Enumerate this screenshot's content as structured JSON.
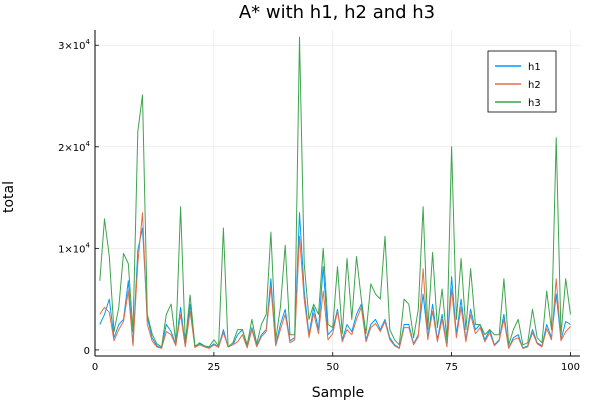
{
  "chart_data": {
    "type": "line",
    "title": "A* with h1, h2 and h3",
    "xlabel": "Sample",
    "ylabel": "total",
    "xlim": [
      0,
      102
    ],
    "ylim": [
      -600,
      31500
    ],
    "xticks": [
      "0",
      "25",
      "50",
      "75",
      "100"
    ],
    "xtick_values": [
      0,
      25,
      50,
      75,
      100
    ],
    "ytick_values": [
      0,
      10000,
      20000,
      30000
    ],
    "ytick_labels": [
      {
        "base": "0",
        "exp": ""
      },
      {
        "base": "1×10",
        "exp": "4"
      },
      {
        "base": "2×10",
        "exp": "4"
      },
      {
        "base": "3×10",
        "exp": "4"
      }
    ],
    "grid": true,
    "legend": "top-right",
    "colors": {
      "h1": "#009AFA",
      "h2": "#E36F47",
      "h3": "#3EA44E"
    },
    "x": [
      1,
      2,
      3,
      4,
      5,
      6,
      7,
      8,
      9,
      10,
      11,
      12,
      13,
      14,
      15,
      16,
      17,
      18,
      19,
      20,
      21,
      22,
      23,
      24,
      25,
      26,
      27,
      28,
      29,
      30,
      31,
      32,
      33,
      34,
      35,
      36,
      37,
      38,
      39,
      40,
      41,
      42,
      43,
      44,
      45,
      46,
      47,
      48,
      49,
      50,
      51,
      52,
      53,
      54,
      55,
      56,
      57,
      58,
      59,
      60,
      61,
      62,
      63,
      64,
      65,
      66,
      67,
      68,
      69,
      70,
      71,
      72,
      73,
      74,
      75,
      76,
      77,
      78,
      79,
      80,
      81,
      82,
      83,
      84,
      85,
      86,
      87,
      88,
      89,
      90,
      91,
      92,
      93,
      94,
      95,
      96,
      97,
      98,
      99,
      100
    ],
    "series": [
      {
        "name": "h1",
        "values": [
          2500,
          3500,
          5000,
          1200,
          2500,
          3000,
          6800,
          500,
          9800,
          12000,
          3200,
          1200,
          400,
          200,
          2500,
          1800,
          500,
          4200,
          400,
          4500,
          300,
          700,
          400,
          200,
          600,
          300,
          2000,
          300,
          500,
          1500,
          2000,
          300,
          2200,
          400,
          1500,
          2000,
          7000,
          500,
          2500,
          4000,
          900,
          1200,
          13500,
          5800,
          1500,
          4200,
          2000,
          8200,
          1500,
          2000,
          4000,
          1000,
          2500,
          1800,
          3500,
          4500,
          1000,
          2500,
          3000,
          2000,
          3000,
          1200,
          500,
          200,
          2500,
          2500,
          600,
          1500,
          5500,
          1200,
          4500,
          1000,
          3500,
          400,
          7200,
          1500,
          5000,
          1000,
          4000,
          2000,
          2500,
          1000,
          2000,
          500,
          1000,
          3500,
          200,
          1200,
          1500,
          200,
          400,
          2000,
          700,
          400,
          2500,
          1200,
          5500,
          1000,
          2800,
          2500
        ]
      },
      {
        "name": "h2",
        "values": [
          3500,
          4200,
          3700,
          900,
          2000,
          2800,
          5800,
          400,
          8500,
          13500,
          2500,
          900,
          300,
          150,
          1800,
          1500,
          400,
          3500,
          300,
          3800,
          250,
          500,
          300,
          150,
          500,
          250,
          1700,
          300,
          500,
          800,
          1500,
          200,
          2000,
          300,
          1300,
          1800,
          6200,
          400,
          2000,
          3500,
          700,
          1000,
          11200,
          5000,
          1200,
          3600,
          1600,
          5800,
          1000,
          1600,
          3800,
          800,
          2000,
          1500,
          3000,
          4200,
          800,
          2200,
          2600,
          1800,
          2800,
          1000,
          400,
          150,
          2200,
          2200,
          500,
          1300,
          8000,
          1000,
          3800,
          800,
          3000,
          300,
          6000,
          1200,
          4200,
          800,
          3500,
          1600,
          2200,
          800,
          1700,
          400,
          900,
          3000,
          150,
          1000,
          1200,
          150,
          300,
          1700,
          600,
          300,
          2100,
          1000,
          7000,
          900,
          1800,
          2300
        ]
      },
      {
        "name": "h3",
        "values": [
          6800,
          12900,
          9200,
          1800,
          4200,
          9500,
          8500,
          1800,
          21500,
          25100,
          3500,
          1600,
          600,
          300,
          3500,
          4500,
          800,
          14100,
          700,
          5400,
          400,
          600,
          400,
          300,
          1000,
          400,
          12000,
          300,
          700,
          2000,
          2000,
          500,
          3000,
          600,
          2500,
          3500,
          11600,
          1000,
          4200,
          10300,
          1500,
          1500,
          30800,
          8500,
          3000,
          4500,
          3500,
          10000,
          2500,
          2200,
          8200,
          1600,
          9000,
          3000,
          9200,
          5000,
          1600,
          6500,
          5500,
          5000,
          11200,
          2000,
          1000,
          500,
          5000,
          4500,
          1200,
          4000,
          14100,
          2000,
          9600,
          2200,
          6000,
          1000,
          20000,
          3000,
          9000,
          2000,
          8000,
          2500,
          2500,
          1500,
          2000,
          1500,
          1500,
          7000,
          500,
          2000,
          3000,
          500,
          700,
          4000,
          1200,
          700,
          5800,
          2000,
          20900,
          1500,
          7000,
          3500
        ]
      }
    ]
  }
}
